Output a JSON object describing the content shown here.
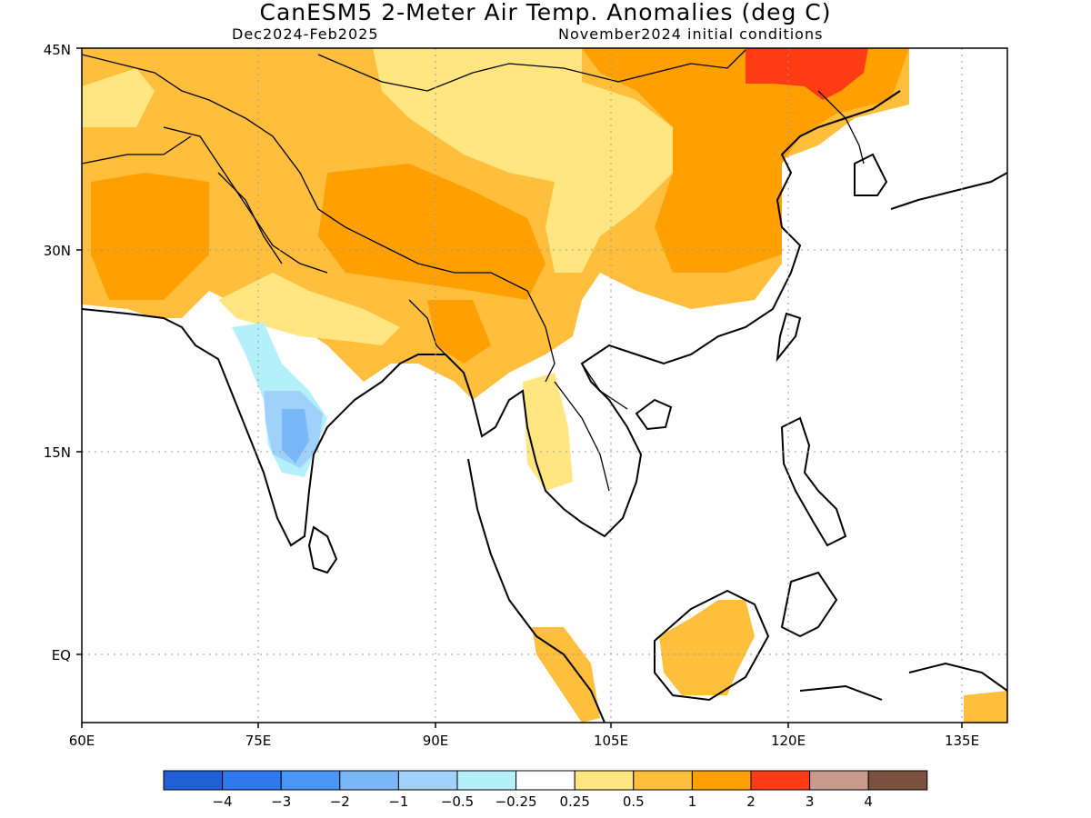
{
  "header": {
    "title": "CanESM5 2-Meter Air Temp. Anomalies (deg C)",
    "period": "Dec2024-Feb2025",
    "init": "November2024 initial conditions"
  },
  "map": {
    "lon_range": [
      60,
      140
    ],
    "lat_range": [
      -5,
      45
    ],
    "lon_labels": [
      "60E",
      "75E",
      "90E",
      "105E",
      "120E",
      "135E"
    ],
    "lon_values": [
      60,
      75,
      90,
      105,
      120,
      135
    ],
    "lat_labels": [
      "EQ",
      "15N",
      "30N",
      "45N"
    ],
    "lat_values": [
      0,
      15,
      30,
      45
    ],
    "grid": "dotted"
  },
  "colorbar": {
    "colors": [
      "#1f5fd6",
      "#2e78f0",
      "#4a96f5",
      "#7ab7f9",
      "#a0d1fb",
      "#b4f0fa",
      "#ffffff",
      "#ffe681",
      "#ffbe3c",
      "#ff9f00",
      "#ff3c14",
      "#c89a8c",
      "#7a5040"
    ],
    "labels": [
      "-4",
      "-3",
      "-2",
      "-1",
      "-0.5",
      "-0.25",
      "0.25",
      "0.5",
      "1",
      "2",
      "3",
      "4"
    ]
  }
}
